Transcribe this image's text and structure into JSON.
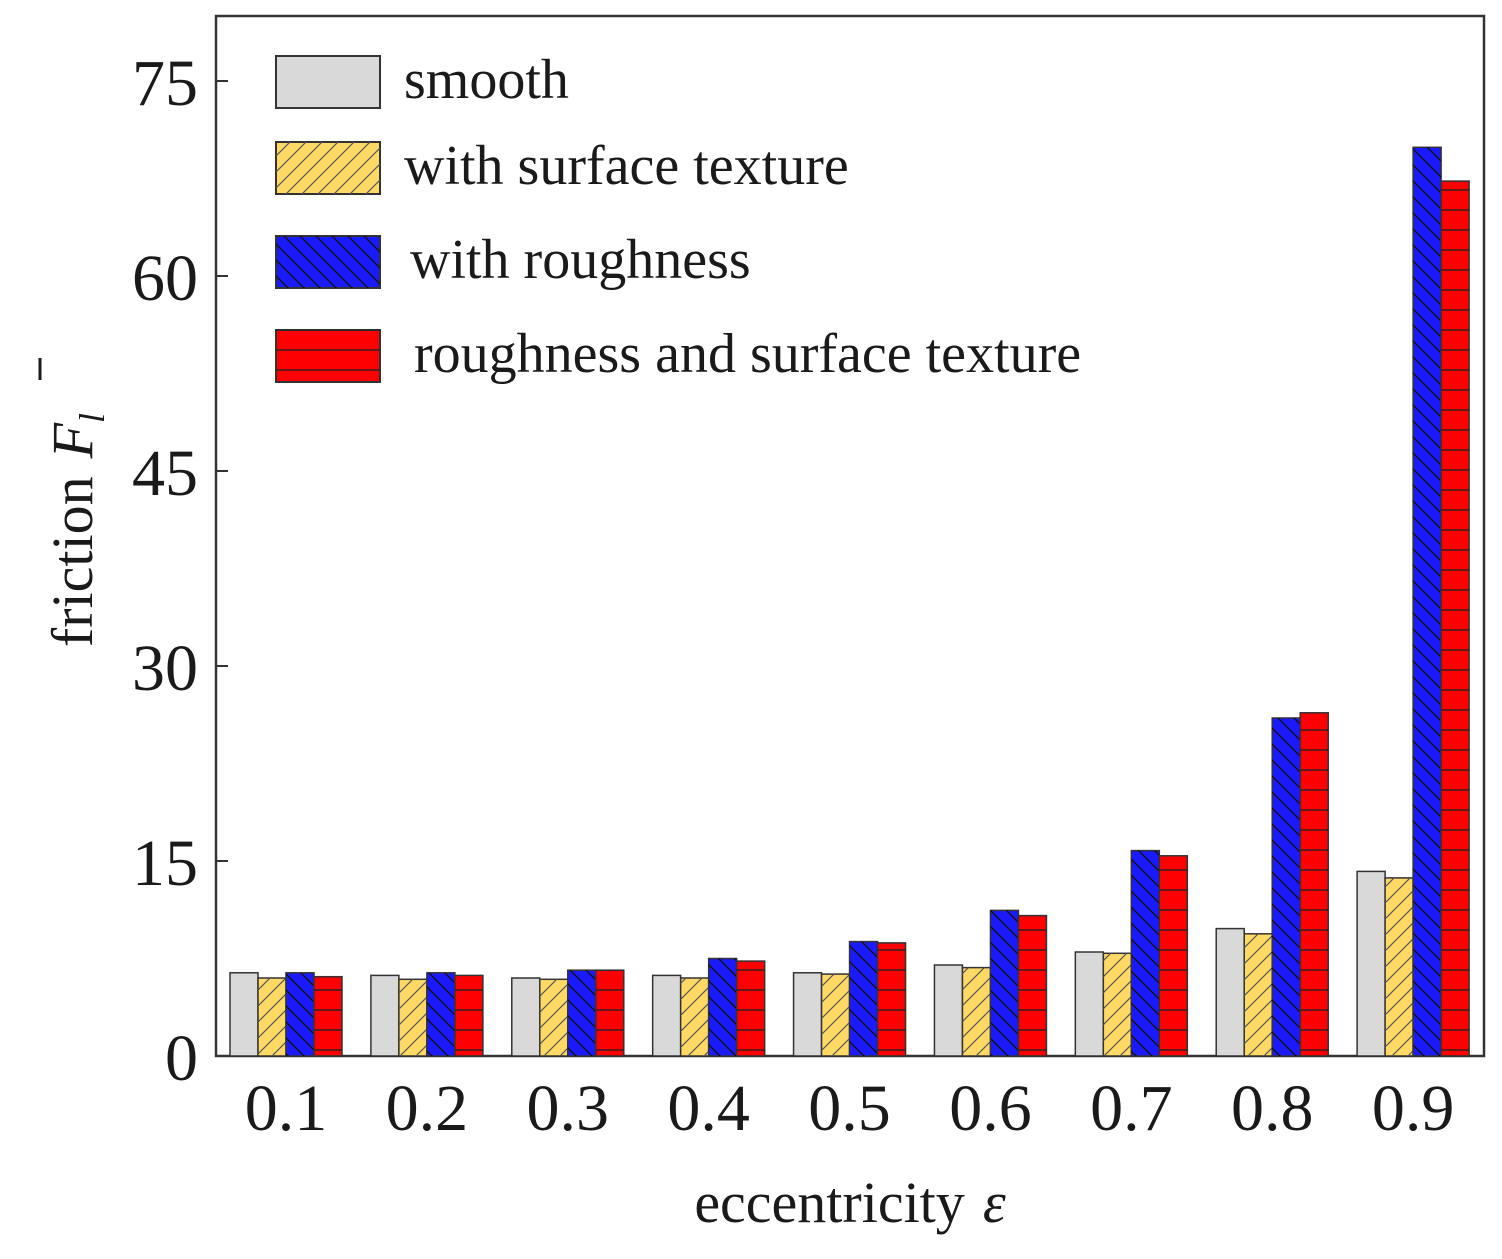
{
  "chart_data": {
    "type": "bar",
    "title": "",
    "xlabel": "eccentricity",
    "xlabel_symbol": "ε",
    "ylabel": "friction",
    "ylabel_symbol": "F",
    "ylabel_subscript": "l",
    "categories": [
      "0.1",
      "0.2",
      "0.3",
      "0.4",
      "0.5",
      "0.6",
      "0.7",
      "0.8",
      "0.9"
    ],
    "ylim": [
      0,
      80
    ],
    "yticks": [
      "0",
      "15",
      "30",
      "45",
      "60",
      "75"
    ],
    "ytick_values": [
      0,
      15,
      30,
      45,
      60,
      75
    ],
    "legend_position": "top-left",
    "series": [
      {
        "name": "smooth",
        "color": "#d9d9d9",
        "pattern": "none",
        "values": [
          6.4,
          6.2,
          6.0,
          6.2,
          6.4,
          7.0,
          8.0,
          9.8,
          14.2
        ]
      },
      {
        "name": "with surface texture",
        "color": "#ffd966",
        "pattern": "diag-up",
        "values": [
          6.0,
          5.9,
          5.9,
          6.0,
          6.3,
          6.8,
          7.9,
          9.4,
          13.7
        ]
      },
      {
        "name": "with roughness",
        "color": "#1a1aff",
        "pattern": "diag-down",
        "values": [
          6.4,
          6.4,
          6.6,
          7.5,
          8.8,
          11.2,
          15.8,
          26.0,
          69.9
        ]
      },
      {
        "name": "roughness and surface texture",
        "color": "#ff0000",
        "pattern": "horizontal",
        "values": [
          6.1,
          6.2,
          6.6,
          7.3,
          8.7,
          10.8,
          15.4,
          26.4,
          67.3
        ]
      }
    ]
  }
}
